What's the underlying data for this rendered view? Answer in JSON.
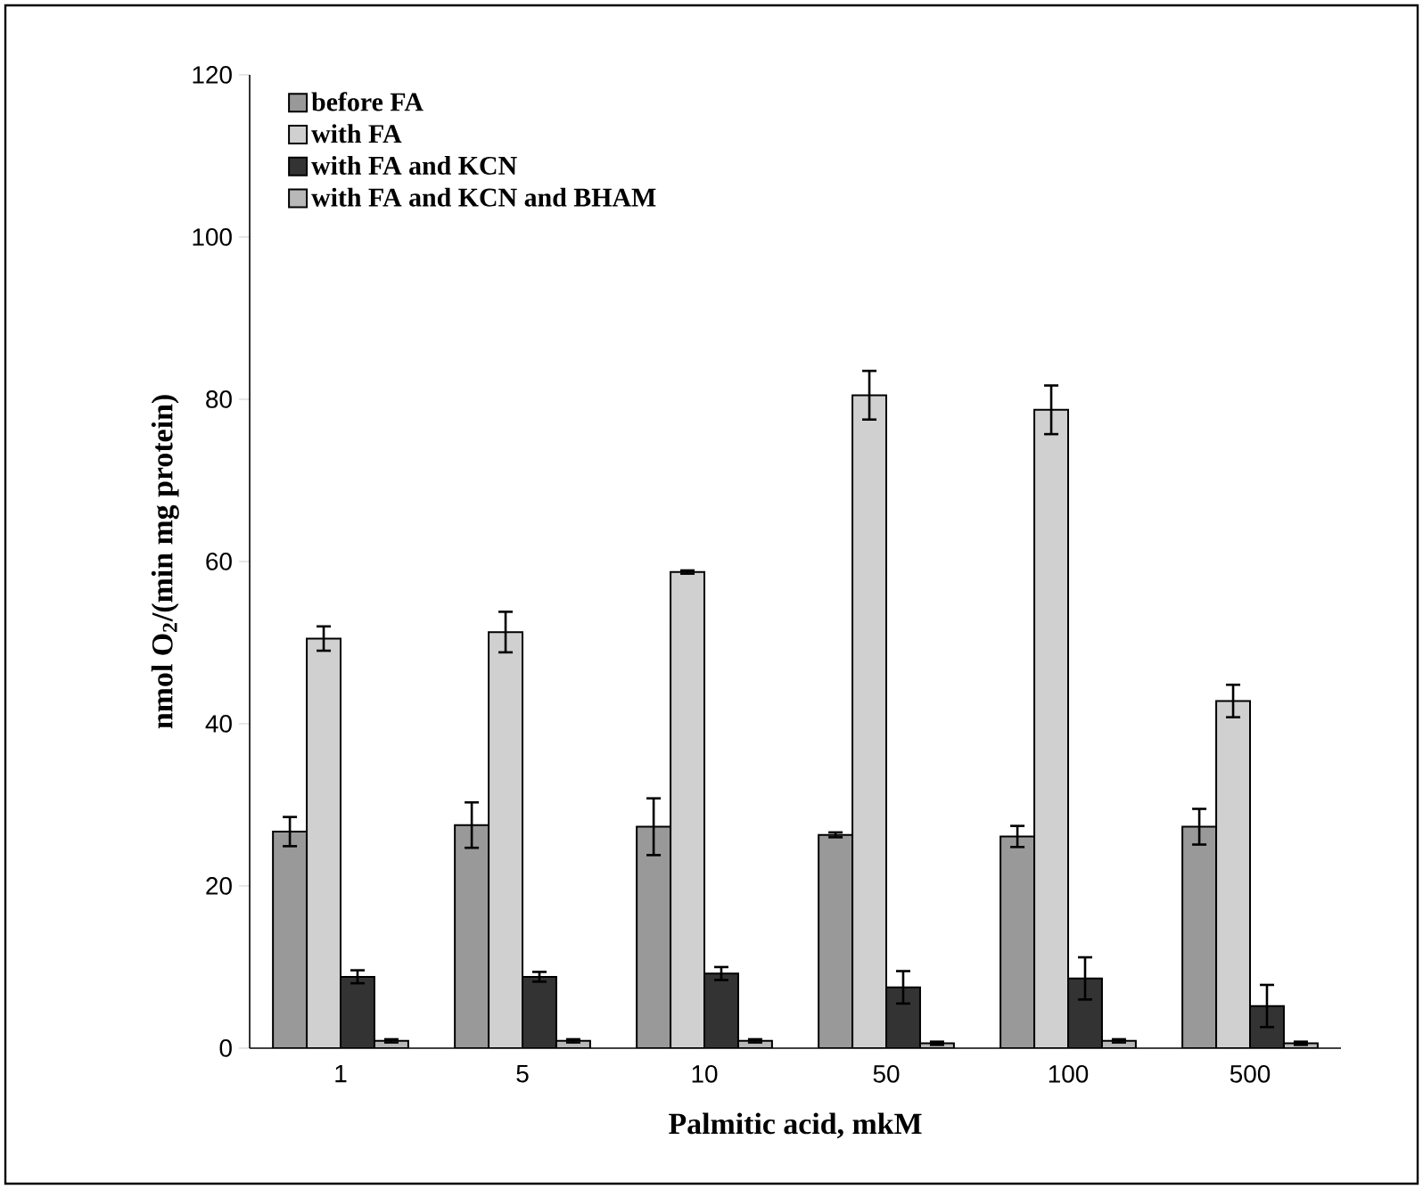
{
  "chart_data": {
    "type": "bar",
    "xlabel": "Palmitic acid, mkM",
    "ylabel": "nmol  O$_{2}$/(min mg protein)",
    "categories": [
      "1",
      "5",
      "10",
      "50",
      "100",
      "500"
    ],
    "series": [
      {
        "name": "before FA",
        "color": "#999999",
        "values": [
          26.7,
          27.5,
          27.3,
          26.3,
          26.1,
          27.3
        ],
        "errors": [
          1.8,
          2.8,
          3.5,
          0.3,
          1.3,
          2.2
        ]
      },
      {
        "name": "with FA",
        "color": "#d0d0d0",
        "values": [
          50.5,
          51.3,
          58.7,
          80.5,
          78.7,
          42.8
        ],
        "errors": [
          1.5,
          2.5,
          0.2,
          3.0,
          3.0,
          2.0
        ]
      },
      {
        "name": "with FA and KCN",
        "color": "#333333",
        "values": [
          8.8,
          8.8,
          9.2,
          7.5,
          8.6,
          5.2
        ],
        "errors": [
          0.8,
          0.6,
          0.8,
          2.0,
          2.6,
          2.6
        ]
      },
      {
        "name": "with FA and KCN and BHAM",
        "color": "#b8b8b8",
        "values": [
          0.9,
          0.9,
          0.9,
          0.6,
          0.9,
          0.6
        ],
        "errors": [
          0.2,
          0.2,
          0.2,
          0.2,
          0.2,
          0.2
        ]
      }
    ],
    "ylim": [
      0,
      120
    ],
    "yticks": [
      0,
      20,
      40,
      60,
      80,
      100,
      120
    ],
    "legend": "top left"
  }
}
